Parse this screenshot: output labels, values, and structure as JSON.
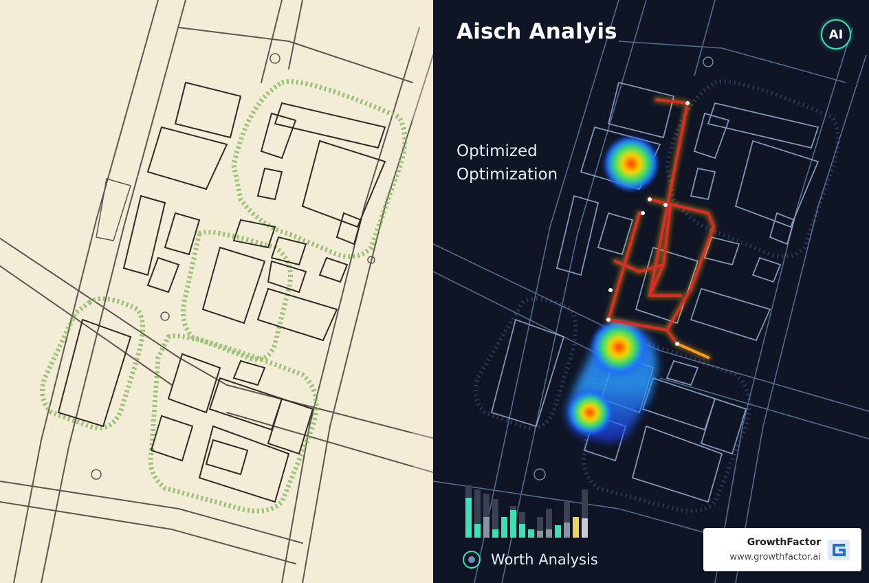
{
  "header": {
    "title": "Aisch Analyis"
  },
  "overlay": {
    "line1": "Optimized",
    "line2": "Optimization"
  },
  "badge": {
    "label": "AI",
    "icon": "ai-badge-icon"
  },
  "legend": {
    "label": "Worth Analysis",
    "icon": "target-icon"
  },
  "brand": {
    "name": "GrowthFactor",
    "url": "www.growthfactor.ai",
    "logo": "growthfactor-logo-icon"
  },
  "colors": {
    "paper": "#f3ecd6",
    "dark_bg": "#0f1524",
    "route": "#e02a2a",
    "accent": "#3ee0b5",
    "brand_blue": "#1f6fd6"
  }
}
